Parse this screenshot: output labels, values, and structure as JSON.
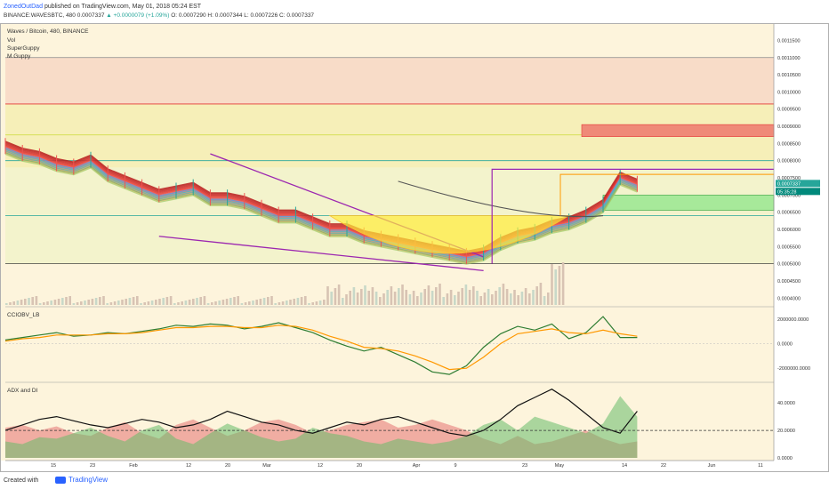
{
  "header": {
    "author": "ZonedOutDad",
    "published": "published on TradingView.com, May 01, 2018 05:24 EST",
    "symbol": "BINANCE:WAVESBTC, 480",
    "price": "0.0007337",
    "change": "▲ +0.0000079 (+1.09%)",
    "ohlc": "O: 0.0007290  H: 0.0007344  L: 0.0007226  C: 0.0007337"
  },
  "footer": {
    "created": "Created with",
    "brand": "TradingView"
  },
  "colors": {
    "background": "#fdf4dc",
    "bull": "#26a69a",
    "bear": "#ef5350",
    "purple_line": "#9c27b0",
    "cciobv": "#2e7d32",
    "cciobv_signal": "#ff9800"
  },
  "chart_data": [
    {
      "type": "line",
      "name": "price",
      "title": "Waves / Bitcoin, 480, BINANCE",
      "indicators": [
        "Vol",
        "SuperGuppy",
        "M.Guppy"
      ],
      "x_ticks": [
        "15",
        "23",
        "Feb",
        "12",
        "20",
        "Mar",
        "12",
        "20",
        "Apr",
        "9",
        "23",
        "May",
        "14",
        "22",
        "Jun",
        "11"
      ],
      "y_ticks": [
        "0.0011500",
        "0.0011000",
        "0.0010500",
        "0.0010000",
        "0.0009500",
        "0.0009000",
        "0.0008500",
        "0.0008000",
        "0.0007500",
        "0.0007000",
        "0.0006500",
        "0.0006000",
        "0.0005500",
        "0.0005000",
        "0.0004500",
        "0.0004000"
      ],
      "ylim": [
        0.00038,
        0.00119
      ],
      "x": [
        0,
        2,
        4,
        6,
        8,
        10,
        12,
        14,
        16,
        18,
        20,
        22,
        24,
        26,
        28,
        30,
        32,
        34,
        36,
        38,
        40,
        42,
        44,
        46,
        48,
        50,
        52,
        54,
        56,
        58,
        60,
        62,
        64,
        66,
        68,
        70,
        72,
        74
      ],
      "values": [
        0.00084,
        0.00082,
        0.00081,
        0.00079,
        0.00078,
        0.0008,
        0.00076,
        0.00074,
        0.00072,
        0.0007,
        0.00071,
        0.00072,
        0.00069,
        0.00069,
        0.00068,
        0.00066,
        0.00064,
        0.00064,
        0.00062,
        0.0006,
        0.0006,
        0.00058,
        0.00057,
        0.00056,
        0.00055,
        0.00054,
        0.00053,
        0.00052,
        0.00053,
        0.00056,
        0.00058,
        0.00059,
        0.00061,
        0.00062,
        0.00064,
        0.00067,
        0.00075,
        0.00073
      ],
      "last_price_label": "0.0007337",
      "countdown_label": "05:35:28"
    },
    {
      "type": "line",
      "name": "CCIOBV_LB",
      "title": "CCIOBV_LB",
      "y_ticks": [
        "2000000.0000",
        "0.0000",
        "-2000000.0000"
      ],
      "ylim": [
        -3000000,
        3000000
      ],
      "x": [
        0,
        2,
        4,
        6,
        8,
        10,
        12,
        14,
        16,
        18,
        20,
        22,
        24,
        26,
        28,
        30,
        32,
        34,
        36,
        38,
        40,
        42,
        44,
        46,
        48,
        50,
        52,
        54,
        56,
        58,
        60,
        62,
        64,
        66,
        68,
        70,
        72,
        74
      ],
      "series": [
        {
          "values": [
            300000,
            500000,
            700000,
            900000,
            600000,
            700000,
            900000,
            800000,
            1000000,
            1200000,
            1500000,
            1400000,
            1600000,
            1500000,
            1200000,
            1400000,
            1700000,
            1300000,
            900000,
            300000,
            -200000,
            -600000,
            -300000,
            -900000,
            -1500000,
            -2300000,
            -2500000,
            -1800000,
            -300000,
            800000,
            1400000,
            1100000,
            1600000,
            400000,
            900000,
            2200000,
            500000,
            500000
          ]
        },
        {
          "values": [
            200000,
            400000,
            500000,
            700000,
            700000,
            700000,
            800000,
            800000,
            900000,
            1100000,
            1300000,
            1300000,
            1400000,
            1400000,
            1300000,
            1300000,
            1500000,
            1400000,
            1100000,
            600000,
            200000,
            -300000,
            -400000,
            -600000,
            -1000000,
            -1500000,
            -2100000,
            -2000000,
            -1100000,
            0,
            800000,
            1000000,
            1200000,
            900000,
            800000,
            1100000,
            800000,
            600000
          ]
        }
      ]
    },
    {
      "type": "area",
      "name": "ADX and DI",
      "title": "ADX and DI",
      "y_ticks": [
        "40.0000",
        "20.0000",
        "0.0000"
      ],
      "ylim": [
        0,
        55
      ],
      "x": [
        0,
        2,
        4,
        6,
        8,
        10,
        12,
        14,
        16,
        18,
        20,
        22,
        24,
        26,
        28,
        30,
        32,
        34,
        36,
        38,
        40,
        42,
        44,
        46,
        48,
        50,
        52,
        54,
        56,
        58,
        60,
        62,
        64,
        66,
        68,
        70,
        72,
        74
      ],
      "series": [
        {
          "name": "DI+",
          "values": [
            12,
            10,
            15,
            14,
            18,
            22,
            16,
            12,
            20,
            24,
            14,
            10,
            18,
            25,
            20,
            15,
            12,
            14,
            22,
            18,
            16,
            12,
            10,
            14,
            12,
            10,
            12,
            16,
            24,
            28,
            20,
            30,
            26,
            22,
            18,
            25,
            45,
            30
          ]
        },
        {
          "name": "DI-",
          "values": [
            22,
            24,
            20,
            23,
            18,
            16,
            22,
            26,
            18,
            14,
            24,
            28,
            22,
            16,
            20,
            26,
            28,
            24,
            18,
            20,
            24,
            26,
            28,
            22,
            24,
            28,
            24,
            20,
            14,
            10,
            16,
            10,
            12,
            16,
            20,
            14,
            10,
            12
          ]
        },
        {
          "name": "ADX",
          "values": [
            20,
            24,
            28,
            30,
            27,
            24,
            22,
            25,
            28,
            26,
            22,
            24,
            28,
            34,
            30,
            26,
            24,
            20,
            18,
            22,
            26,
            24,
            28,
            30,
            26,
            22,
            18,
            16,
            20,
            28,
            38,
            44,
            50,
            42,
            32,
            22,
            18,
            34
          ]
        }
      ],
      "reference_line": 20
    }
  ]
}
